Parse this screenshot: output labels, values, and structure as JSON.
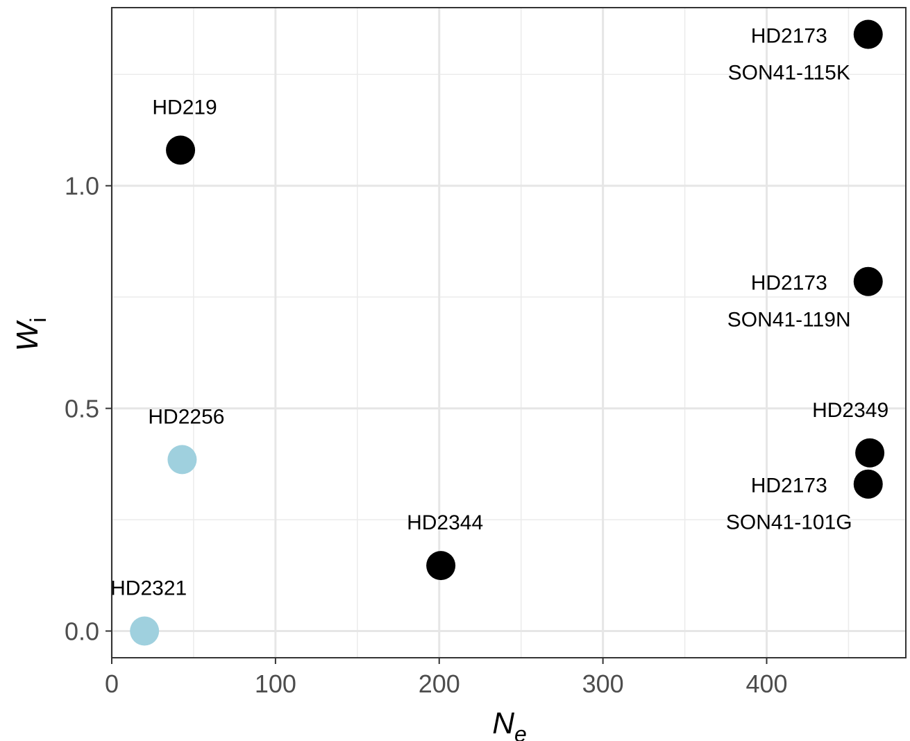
{
  "chart_data": {
    "type": "scatter",
    "xlabel": {
      "main": "N",
      "sub": "e"
    },
    "ylabel": {
      "main": "W",
      "sub": "i"
    },
    "xlim": [
      0,
      485
    ],
    "ylim": [
      -0.06,
      1.4
    ],
    "x_ticks": [
      0,
      100,
      200,
      300,
      400
    ],
    "y_ticks": [
      0.0,
      0.5,
      1.0
    ],
    "y_tick_labels": [
      "0.0",
      "0.5",
      "1.0"
    ],
    "grid": true,
    "points": [
      {
        "x": 462,
        "y": 1.34,
        "color": "#000000",
        "labels": [
          "HD2173",
          "SON41-115K"
        ],
        "label_pos": "left"
      },
      {
        "x": 42,
        "y": 1.08,
        "color": "#000000",
        "labels": [
          "HD219"
        ],
        "label_pos": "above"
      },
      {
        "x": 462,
        "y": 0.785,
        "color": "#000000",
        "labels": [
          "HD2173",
          "SON41-119N"
        ],
        "label_pos": "left"
      },
      {
        "x": 43,
        "y": 0.385,
        "color": "#9fd0de",
        "labels": [
          "HD2256"
        ],
        "label_pos": "above"
      },
      {
        "x": 463,
        "y": 0.4,
        "color": "#000000",
        "labels": [
          "HD2349"
        ],
        "label_pos": "above-left"
      },
      {
        "x": 462,
        "y": 0.33,
        "color": "#000000",
        "labels": [
          "HD2173",
          "SON41-101G"
        ],
        "label_pos": "left"
      },
      {
        "x": 201,
        "y": 0.147,
        "color": "#000000",
        "labels": [
          "HD2344"
        ],
        "label_pos": "above"
      },
      {
        "x": 20,
        "y": 0.0,
        "color": "#9fd0de",
        "labels": [
          "HD2321"
        ],
        "label_pos": "above"
      }
    ]
  }
}
